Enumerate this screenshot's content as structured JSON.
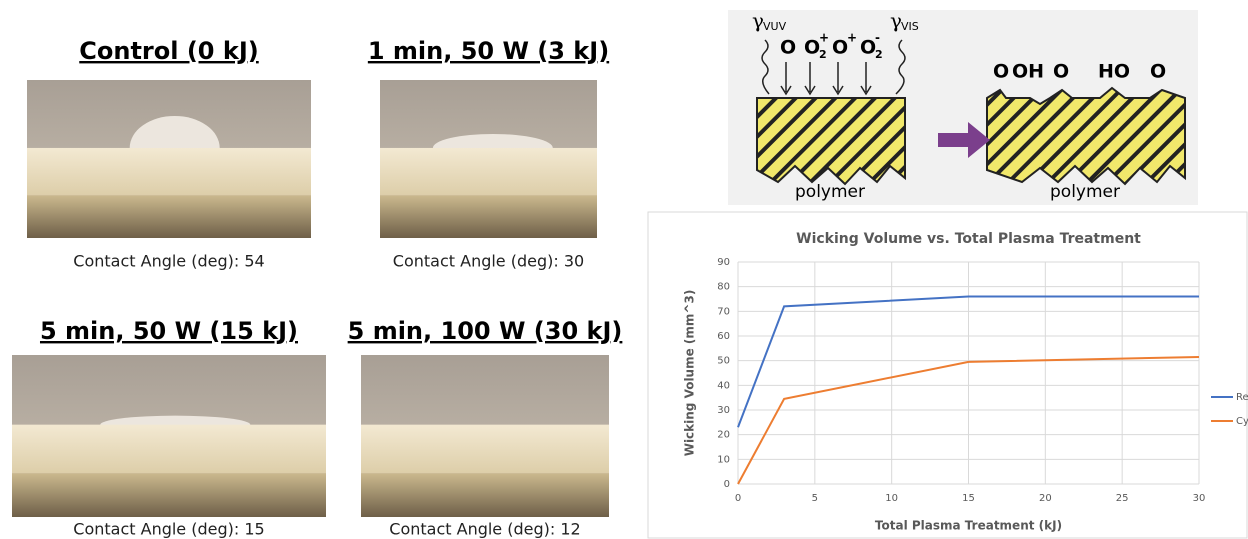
{
  "panels": [
    {
      "title": "Control (0 kJ)",
      "caption": "Contact Angle (deg): 54"
    },
    {
      "title": "1 min, 50 W (3 kJ)",
      "caption": "Contact Angle (deg): 30"
    },
    {
      "title": "5 min, 50 W (15 kJ)",
      "caption": "Contact Angle (deg): 15"
    },
    {
      "title": "5 min, 100 W (30 kJ)",
      "caption": "Contact Angle (deg): 12"
    }
  ],
  "diagram": {
    "radiation": [
      {
        "symbol": "γ",
        "sub": "VUV"
      },
      {
        "symbol": "γ",
        "sub": "VIS"
      }
    ],
    "species": [
      {
        "base": "O",
        "sub": "",
        "sup": ""
      },
      {
        "base": "O",
        "sub": "2",
        "sup": "+"
      },
      {
        "base": "O",
        "sub": "",
        "sup": "+"
      },
      {
        "base": "O",
        "sub": "2",
        "sup": "-"
      }
    ],
    "groups": [
      "O",
      "OH",
      "O",
      "HO",
      "O"
    ],
    "material": [
      "polymer",
      "polymer"
    ]
  },
  "chart_data": {
    "type": "line",
    "title": "Wicking Volume vs. Total Plasma Treatment",
    "x_label": "Total Plasma Treatment (kJ)",
    "y_label": "Wicking Volume (mm^3)",
    "x": [
      0,
      3,
      15,
      30
    ],
    "series": [
      {
        "name": "Rectangular",
        "color": "#4472c4",
        "values": [
          23,
          72,
          76,
          76
        ]
      },
      {
        "name": "Cylindrical",
        "color": "#ed7d31",
        "values": [
          0,
          34.5,
          49.5,
          51.5
        ]
      }
    ],
    "xlim": [
      0,
      30
    ],
    "xticks": [
      0,
      5,
      10,
      15,
      20,
      25,
      30
    ],
    "ylim": [
      0,
      90
    ],
    "yticks": [
      0,
      10,
      20,
      30,
      40,
      50,
      60,
      70,
      80,
      90
    ],
    "grid": true,
    "legend": "right"
  }
}
